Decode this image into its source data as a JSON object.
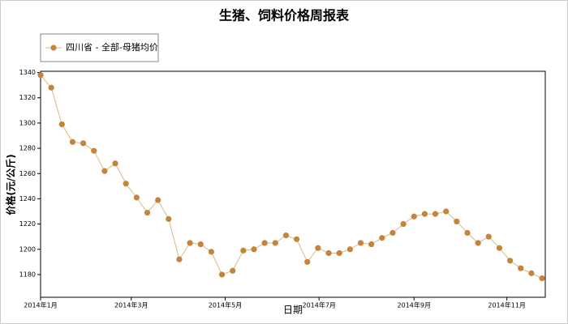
{
  "chart_data": {
    "type": "line",
    "title": "生猪、饲料价格周报表",
    "y_label": "价格(元/公斤)",
    "x_label": "日期",
    "x": [
      0,
      1,
      2,
      3,
      4,
      5,
      6,
      7,
      8,
      9,
      10,
      11,
      12,
      13,
      14,
      15,
      16,
      17,
      18,
      19,
      20,
      21,
      22,
      23,
      24,
      25,
      26,
      27,
      28,
      29,
      30,
      31,
      32,
      33,
      34,
      35,
      36,
      37,
      38,
      39,
      40,
      41,
      42,
      43,
      44,
      45,
      46,
      47
    ],
    "series": [
      {
        "name": "四川省 - 全部-母猪均价",
        "color": "#c4843c",
        "values": [
          1338,
          1328,
          1299,
          1285,
          1284,
          1278,
          1262,
          1268,
          1252,
          1241,
          1229,
          1239,
          1224,
          1192,
          1205,
          1204,
          1198,
          1180,
          1183,
          1199,
          1200,
          1205,
          1205,
          1211,
          1208,
          1190,
          1201,
          1197,
          1197,
          1200,
          1205,
          1204,
          1209,
          1213,
          1220,
          1226,
          1228,
          1228,
          1230,
          1222,
          1213,
          1205,
          1210,
          1201,
          1191,
          1185,
          1181,
          1177
        ]
      }
    ],
    "xlim": [
      0,
      47.3
    ],
    "xticks": [
      {
        "value": 0,
        "label": "2014年1月"
      },
      {
        "value": 8.5,
        "label": "2014年3月"
      },
      {
        "value": 17.3,
        "label": "2014年5月"
      },
      {
        "value": 26.1,
        "label": "2014年7月"
      },
      {
        "value": 35,
        "label": "2014年9月"
      },
      {
        "value": 43.7,
        "label": "2014年11月"
      }
    ],
    "ylim": [
      1162,
      1341
    ],
    "yticks": [
      1180,
      1200,
      1220,
      1240,
      1260,
      1280,
      1300,
      1320,
      1340
    ],
    "legend": "top-left"
  }
}
